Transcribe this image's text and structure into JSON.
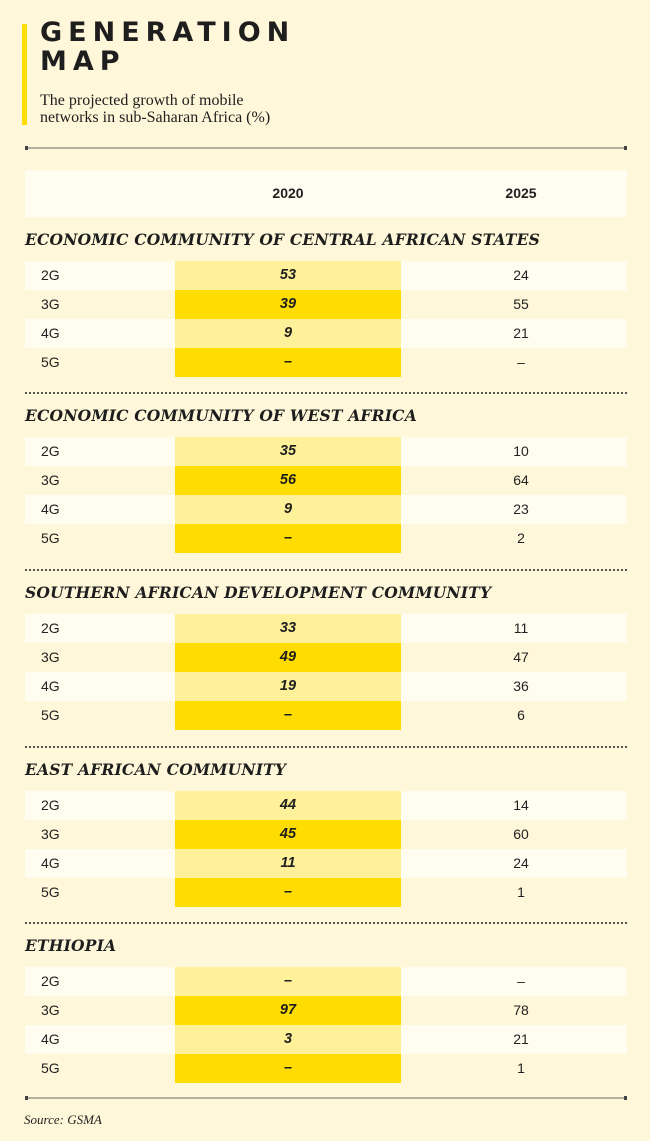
{
  "title_line1": "GENERATION",
  "title_line2": "MAP",
  "subtitle_line1": "The projected growth of mobile",
  "subtitle_line2": "networks in sub-Saharan Africa (%)",
  "source": "Source: GSMA",
  "colors": {
    "accent": "#ffdd00",
    "accent_light": "#fff199",
    "background": "#fff7d9",
    "row_light": "#fffdf0"
  },
  "chart_data": {
    "type": "table",
    "title": "GENERATION MAP",
    "subtitle": "The projected growth of mobile networks in sub-Saharan Africa (%)",
    "columns": [
      "",
      "2020",
      "2025"
    ],
    "sections": [
      {
        "name": "ECONOMIC COMMUNITY OF CENTRAL AFRICAN STATES",
        "rows": [
          {
            "label": "2G",
            "y2020": "53",
            "y2025": "24"
          },
          {
            "label": "3G",
            "y2020": "39",
            "y2025": "55"
          },
          {
            "label": "4G",
            "y2020": "9",
            "y2025": "21"
          },
          {
            "label": "5G",
            "y2020": "–",
            "y2025": "–"
          }
        ]
      },
      {
        "name": "ECONOMIC COMMUNITY OF WEST AFRICA",
        "rows": [
          {
            "label": "2G",
            "y2020": "35",
            "y2025": "10"
          },
          {
            "label": "3G",
            "y2020": "56",
            "y2025": "64"
          },
          {
            "label": "4G",
            "y2020": "9",
            "y2025": "23"
          },
          {
            "label": "5G",
            "y2020": "–",
            "y2025": "2"
          }
        ]
      },
      {
        "name": "SOUTHERN AFRICAN DEVELOPMENT COMMUNITY",
        "rows": [
          {
            "label": "2G",
            "y2020": "33",
            "y2025": "11"
          },
          {
            "label": "3G",
            "y2020": "49",
            "y2025": "47"
          },
          {
            "label": "4G",
            "y2020": "19",
            "y2025": "36"
          },
          {
            "label": "5G",
            "y2020": "–",
            "y2025": "6"
          }
        ]
      },
      {
        "name": "EAST AFRICAN COMMUNITY",
        "rows": [
          {
            "label": "2G",
            "y2020": "44",
            "y2025": "14"
          },
          {
            "label": "3G",
            "y2020": "45",
            "y2025": "60"
          },
          {
            "label": "4G",
            "y2020": "11",
            "y2025": "24"
          },
          {
            "label": "5G",
            "y2020": "–",
            "y2025": "1"
          }
        ]
      },
      {
        "name": "ETHIOPIA",
        "rows": [
          {
            "label": "2G",
            "y2020": "–",
            "y2025": "–"
          },
          {
            "label": "3G",
            "y2020": "97",
            "y2025": "78"
          },
          {
            "label": "4G",
            "y2020": "3",
            "y2025": "21"
          },
          {
            "label": "5G",
            "y2020": "–",
            "y2025": "1"
          }
        ]
      }
    ],
    "source": "Source: GSMA"
  }
}
